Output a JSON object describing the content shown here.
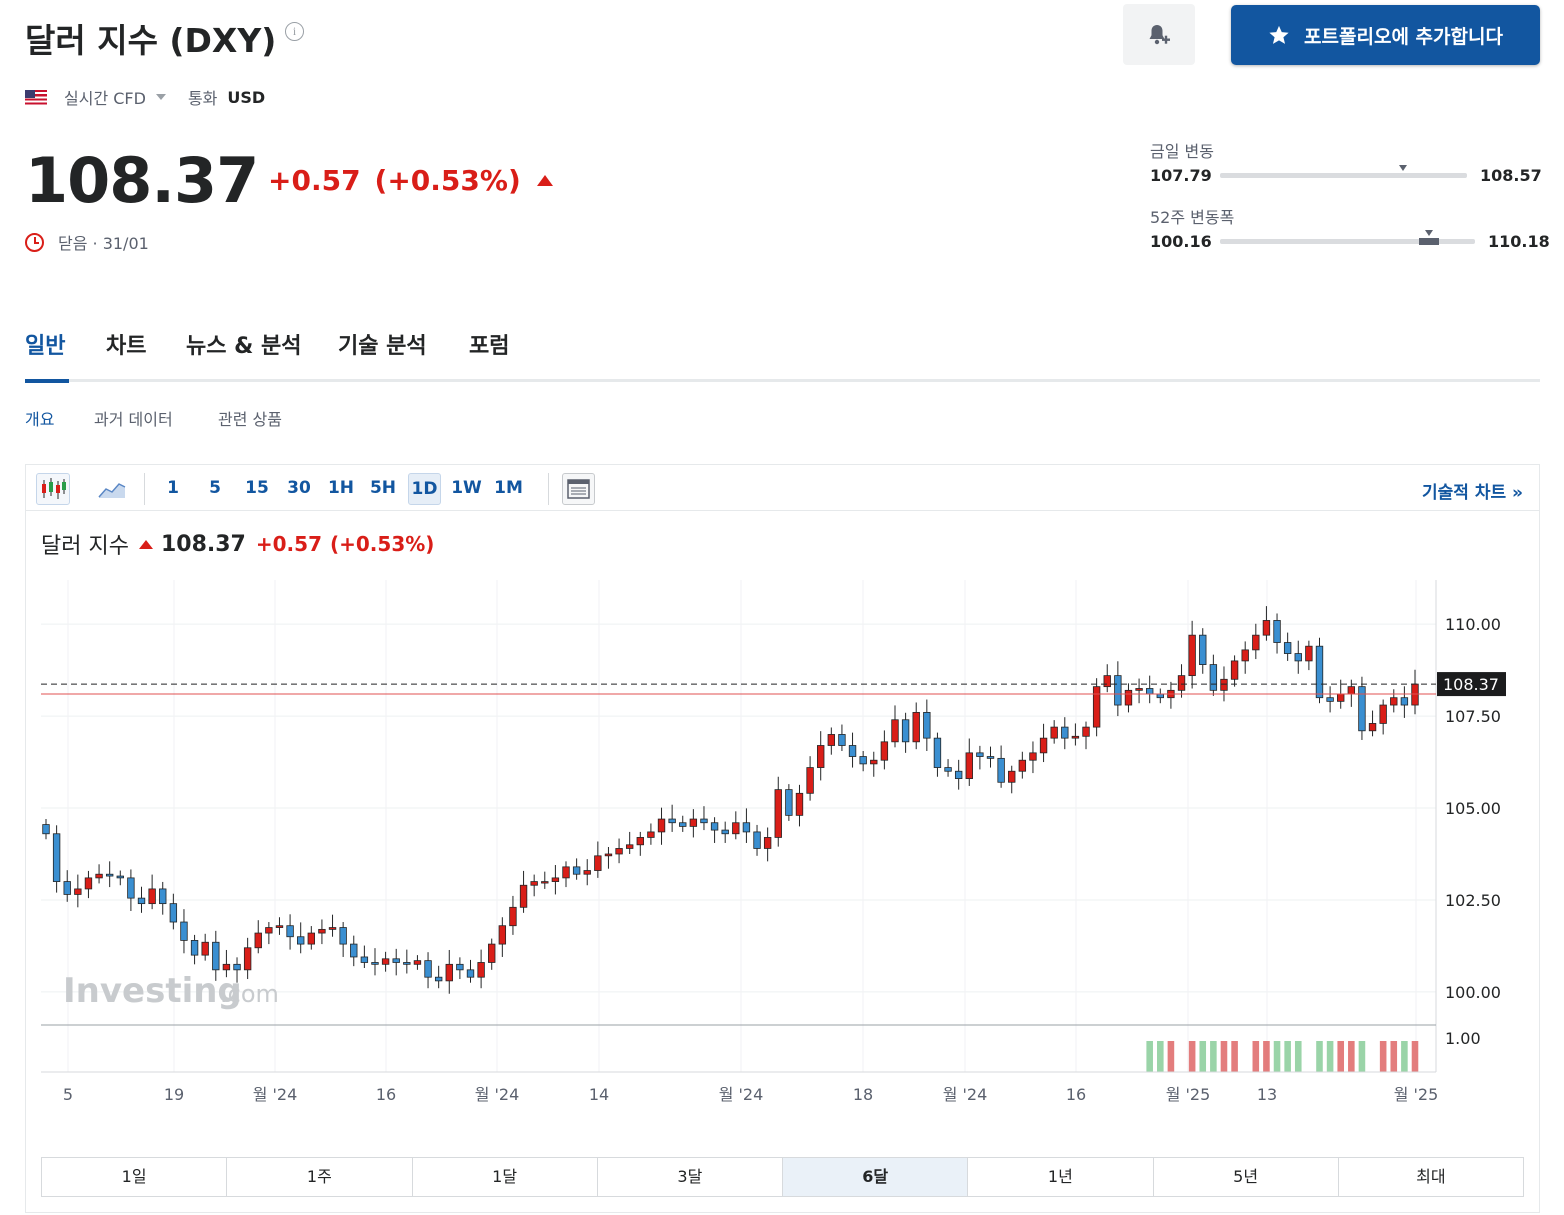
{
  "header": {
    "title": "달러 지수 (DXY)",
    "add_portfolio_label": "포트폴리오에 추가합니다",
    "feed_type": "실시간 CFD",
    "currency_label": "통화",
    "currency": "USD"
  },
  "quote": {
    "price": "108.37",
    "change": "+0.57",
    "change_pct": "(+0.53%)",
    "status": "닫음 · 31/01",
    "up_color": "#d91e18",
    "down_color": "#3a8fd1"
  },
  "day_range": {
    "label": "금일 변동",
    "low": "107.79",
    "high": "108.57",
    "position": 0.74
  },
  "week52_range": {
    "label": "52주 변동폭",
    "low": "100.16",
    "high": "110.18",
    "position": 0.82
  },
  "tabs": [
    "일반",
    "차트",
    "뉴스 & 분석",
    "기술 분석",
    "포럼"
  ],
  "subtabs": [
    "개요",
    "과거 데이터",
    "관련 상품"
  ],
  "toolbar": {
    "timeframes": [
      "1",
      "5",
      "15",
      "30",
      "1H",
      "5H",
      "1D",
      "1W",
      "1M"
    ],
    "selected": "1D",
    "tech_chart_label": "기술적 차트 »"
  },
  "chart_header": {
    "name": "달러 지수",
    "price": "108.37",
    "change": "+0.57",
    "change_pct": "(+0.53%)"
  },
  "watermark": {
    "brand": "Investing",
    "suffix": ".com"
  },
  "range_buttons": [
    "1일",
    "1주",
    "1달",
    "3달",
    "6달",
    "1년",
    "5년",
    "최대"
  ],
  "range_selected": "6달",
  "chart_data": {
    "type": "candlestick",
    "title": "달러 지수",
    "ylim": [
      99.1,
      111.2
    ],
    "y_ticks": [
      "110.00",
      "107.50",
      "105.00",
      "102.50",
      "100.00"
    ],
    "volume_tick": "1.00",
    "x_ticks": [
      "5",
      "19",
      "월 '24",
      "16",
      "월 '24",
      "14",
      "월 '24",
      "18",
      "월 '24",
      "16",
      "월 '25",
      "13",
      "월 '25"
    ],
    "last_price_label": "108.37",
    "reference_line": 108.1,
    "closes": [
      104.3,
      103.0,
      102.65,
      102.8,
      103.1,
      103.2,
      103.15,
      103.1,
      102.55,
      102.4,
      102.8,
      102.4,
      101.9,
      101.4,
      101.0,
      101.35,
      100.6,
      100.75,
      100.6,
      101.2,
      101.6,
      101.75,
      101.8,
      101.5,
      101.3,
      101.6,
      101.7,
      101.75,
      101.3,
      100.95,
      100.8,
      100.75,
      100.9,
      100.8,
      100.75,
      100.85,
      100.4,
      100.3,
      100.75,
      100.6,
      100.4,
      100.8,
      101.3,
      101.8,
      102.3,
      102.9,
      103.0,
      103.0,
      103.1,
      103.4,
      103.2,
      103.3,
      103.7,
      103.75,
      103.9,
      104.0,
      104.2,
      104.35,
      104.7,
      104.6,
      104.5,
      104.7,
      104.6,
      104.4,
      104.3,
      104.6,
      104.35,
      103.9,
      104.2,
      105.5,
      104.8,
      105.4,
      106.1,
      106.7,
      107.0,
      106.7,
      106.4,
      106.2,
      106.3,
      106.8,
      107.4,
      106.8,
      107.6,
      106.9,
      106.1,
      106.0,
      105.8,
      106.5,
      106.4,
      106.35,
      105.7,
      106.0,
      106.3,
      106.5,
      106.9,
      107.2,
      106.9,
      106.95,
      107.2,
      108.3,
      108.6,
      107.8,
      108.2,
      108.25,
      108.1,
      108.0,
      108.2,
      108.6,
      109.7,
      108.9,
      108.2,
      108.5,
      109.0,
      109.3,
      109.7,
      110.1,
      109.5,
      109.2,
      109.0,
      109.4,
      108.0,
      107.9,
      108.1,
      108.3,
      107.1,
      107.3,
      107.8,
      108.0,
      107.8,
      108.37
    ]
  }
}
